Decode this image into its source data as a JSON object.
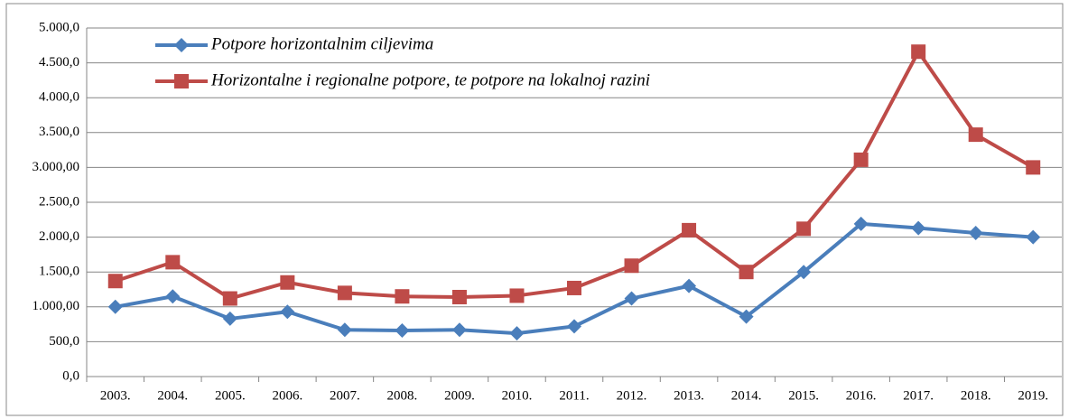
{
  "chart_data": {
    "type": "line",
    "categories": [
      "2003.",
      "2004.",
      "2005.",
      "2006.",
      "2007.",
      "2008.",
      "2009.",
      "2010.",
      "2011.",
      "2012.",
      "2013.",
      "2014.",
      "2015.",
      "2016.",
      "2017.",
      "2018.",
      "2019."
    ],
    "series": [
      {
        "name": "Potpore horizontalnim ciljevima",
        "color": "#4a7ebb",
        "marker": "diamond",
        "values": [
          1000,
          1150,
          830,
          930,
          670,
          660,
          670,
          620,
          720,
          1120,
          1300,
          860,
          1500,
          2190,
          2130,
          2060,
          2000
        ]
      },
      {
        "name": "Horizontalne i regionalne potpore, te potpore na lokalnoj razini",
        "color": "#be4b48",
        "marker": "square",
        "values": [
          1370,
          1640,
          1120,
          1350,
          1200,
          1150,
          1140,
          1160,
          1270,
          1590,
          2100,
          1500,
          2120,
          3110,
          4660,
          3470,
          3000
        ]
      }
    ],
    "ylim": [
      0,
      5000
    ],
    "yticks": [
      {
        "value": 0,
        "label": "0,0"
      },
      {
        "value": 500,
        "label": "500,0"
      },
      {
        "value": 1000,
        "label": "1.000,00"
      },
      {
        "value": 1500,
        "label": "1.500,0"
      },
      {
        "value": 2000,
        "label": "2.000,0"
      },
      {
        "value": 2500,
        "label": "2.500,0"
      },
      {
        "value": 3000,
        "label": "3.000,00"
      },
      {
        "value": 3500,
        "label": "3.500,0"
      },
      {
        "value": 4000,
        "label": "4.000,0"
      },
      {
        "value": 4500,
        "label": "4.500,0"
      },
      {
        "value": 5000,
        "label": "5.000,0"
      }
    ],
    "grid": true,
    "legend": "upper left"
  }
}
